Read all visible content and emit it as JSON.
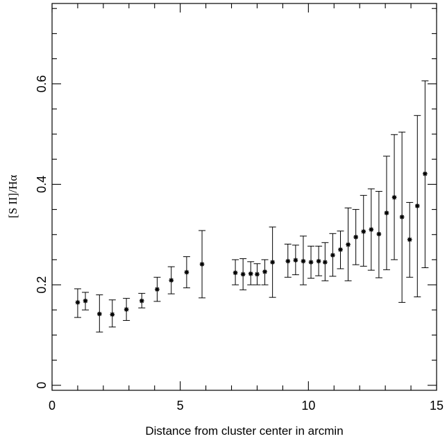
{
  "chart_data": {
    "type": "scatter",
    "title": "",
    "xlabel": "Distance from cluster center in arcmin",
    "ylabel": "[S II]/Hα",
    "xlim": [
      0,
      15
    ],
    "ylim": [
      -0.01,
      0.76
    ],
    "x_ticks": [
      "0",
      "5",
      "10",
      "15"
    ],
    "y_ticks": [
      "0",
      "0.2",
      "0.4",
      "0.6"
    ],
    "grid": false,
    "legend": "none",
    "series": [
      {
        "marker": "asterisk",
        "color": "#000000",
        "points": [
          {
            "x": 1.0,
            "y": 0.165,
            "lo": 0.135,
            "hi": 0.192
          },
          {
            "x": 1.3,
            "y": 0.168,
            "lo": 0.15,
            "hi": 0.185
          },
          {
            "x": 1.85,
            "y": 0.142,
            "lo": 0.106,
            "hi": 0.18
          },
          {
            "x": 2.35,
            "y": 0.141,
            "lo": 0.116,
            "hi": 0.17
          },
          {
            "x": 2.9,
            "y": 0.151,
            "lo": 0.129,
            "hi": 0.173
          },
          {
            "x": 3.5,
            "y": 0.168,
            "lo": 0.154,
            "hi": 0.183
          },
          {
            "x": 4.1,
            "y": 0.191,
            "lo": 0.167,
            "hi": 0.215
          },
          {
            "x": 4.65,
            "y": 0.209,
            "lo": 0.182,
            "hi": 0.236
          },
          {
            "x": 5.25,
            "y": 0.225,
            "lo": 0.194,
            "hi": 0.256
          },
          {
            "x": 5.85,
            "y": 0.241,
            "lo": 0.174,
            "hi": 0.308
          },
          {
            "x": 7.15,
            "y": 0.224,
            "lo": 0.2,
            "hi": 0.25
          },
          {
            "x": 7.45,
            "y": 0.221,
            "lo": 0.19,
            "hi": 0.252
          },
          {
            "x": 7.75,
            "y": 0.222,
            "lo": 0.2,
            "hi": 0.246
          },
          {
            "x": 8.0,
            "y": 0.221,
            "lo": 0.2,
            "hi": 0.242
          },
          {
            "x": 8.3,
            "y": 0.226,
            "lo": 0.2,
            "hi": 0.25
          },
          {
            "x": 8.6,
            "y": 0.245,
            "lo": 0.175,
            "hi": 0.315
          },
          {
            "x": 9.2,
            "y": 0.247,
            "lo": 0.215,
            "hi": 0.281
          },
          {
            "x": 9.5,
            "y": 0.249,
            "lo": 0.22,
            "hi": 0.279
          },
          {
            "x": 9.8,
            "y": 0.247,
            "lo": 0.2,
            "hi": 0.297
          },
          {
            "x": 10.1,
            "y": 0.245,
            "lo": 0.213,
            "hi": 0.277
          },
          {
            "x": 10.4,
            "y": 0.247,
            "lo": 0.218,
            "hi": 0.277
          },
          {
            "x": 10.65,
            "y": 0.245,
            "lo": 0.208,
            "hi": 0.284
          },
          {
            "x": 10.95,
            "y": 0.259,
            "lo": 0.217,
            "hi": 0.302
          },
          {
            "x": 11.25,
            "y": 0.27,
            "lo": 0.232,
            "hi": 0.307
          },
          {
            "x": 11.55,
            "y": 0.28,
            "lo": 0.208,
            "hi": 0.353
          },
          {
            "x": 11.85,
            "y": 0.295,
            "lo": 0.24,
            "hi": 0.35
          },
          {
            "x": 12.15,
            "y": 0.306,
            "lo": 0.237,
            "hi": 0.378
          },
          {
            "x": 12.45,
            "y": 0.31,
            "lo": 0.229,
            "hi": 0.391
          },
          {
            "x": 12.75,
            "y": 0.301,
            "lo": 0.214,
            "hi": 0.386
          },
          {
            "x": 13.05,
            "y": 0.343,
            "lo": 0.23,
            "hi": 0.456
          },
          {
            "x": 13.35,
            "y": 0.374,
            "lo": 0.25,
            "hi": 0.499
          },
          {
            "x": 13.65,
            "y": 0.335,
            "lo": 0.165,
            "hi": 0.504
          },
          {
            "x": 13.95,
            "y": 0.29,
            "lo": 0.215,
            "hi": 0.364
          },
          {
            "x": 14.25,
            "y": 0.357,
            "lo": 0.176,
            "hi": 0.537
          },
          {
            "x": 14.55,
            "y": 0.421,
            "lo": 0.234,
            "hi": 0.606
          }
        ]
      }
    ]
  }
}
